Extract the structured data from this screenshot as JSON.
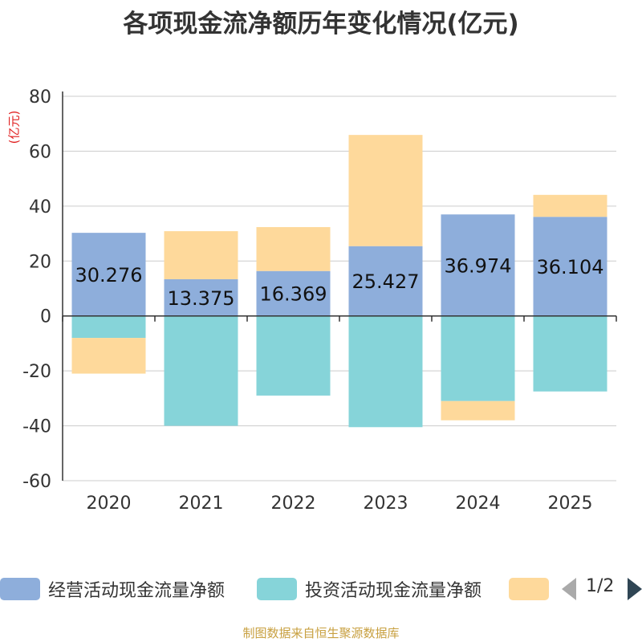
{
  "chart_data": {
    "type": "bar",
    "stacked": true,
    "title": "各项现金流净额历年变化情况(亿元)",
    "ylabel": "(亿元)",
    "categories": [
      "2020",
      "2021",
      "2022",
      "2023",
      "2024",
      "2025"
    ],
    "ylim": [
      -60,
      80
    ],
    "yticks": [
      80,
      60,
      40,
      20,
      0,
      -20,
      -40,
      -60
    ],
    "series": [
      {
        "name": "经营活动现金流量净额",
        "color": "#8eaedb",
        "values": [
          30.276,
          13.375,
          16.369,
          25.427,
          36.974,
          36.104
        ],
        "labels": [
          "30.276",
          "13.375",
          "16.369",
          "25.427",
          "36.974",
          "36.104"
        ]
      },
      {
        "name": "投资活动现金流量净额",
        "color": "#86d4d9",
        "values": [
          -8.0,
          -40.0,
          -29.0,
          -40.5,
          -31.0,
          -27.5
        ]
      },
      {
        "name": "",
        "color": "#fed99b",
        "values": [
          -13.0,
          17.5,
          16.0,
          40.5,
          -7.0,
          8.0
        ]
      }
    ]
  },
  "legend": {
    "items": [
      {
        "label": "经营活动现金流量净额",
        "color": "#8eaedb"
      },
      {
        "label": "投资活动现金流量净额",
        "color": "#86d4d9"
      },
      {
        "label": "",
        "color": "#fed99b"
      }
    ],
    "pager": "1/2"
  },
  "source": "制图数据来自恒生聚源数据库"
}
